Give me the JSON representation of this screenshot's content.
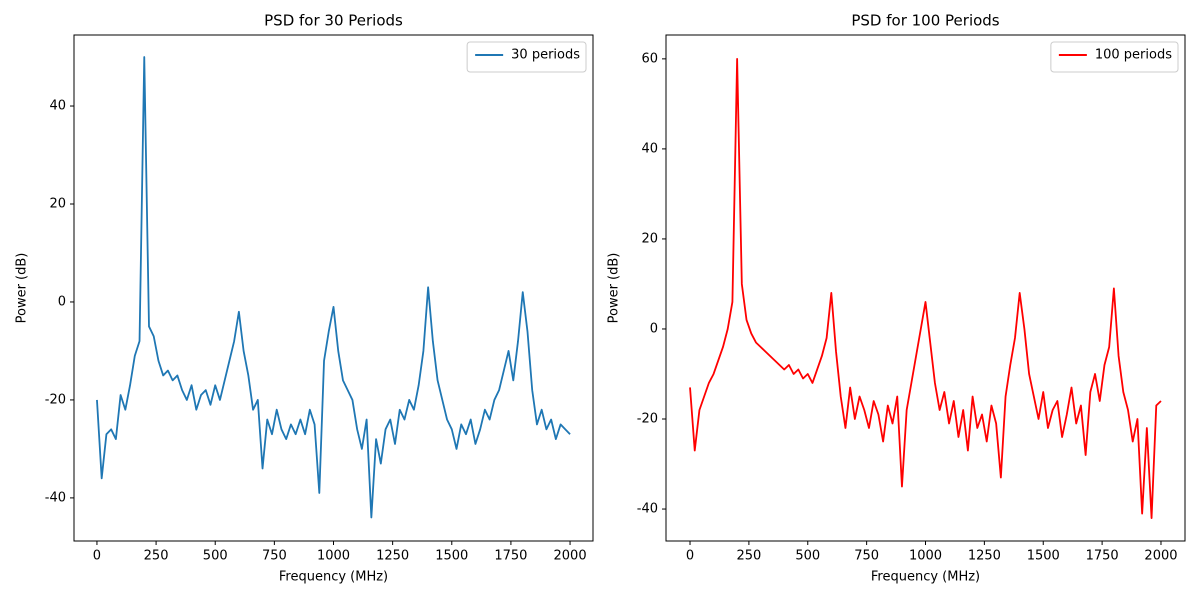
{
  "chart_data": [
    {
      "type": "line",
      "title": "PSD for 30 Periods",
      "x_label": "Frequency (MHz)",
      "y_label": "Power (dB)",
      "x": [
        0,
        20,
        40,
        60,
        80,
        100,
        120,
        140,
        160,
        180,
        200,
        220,
        240,
        260,
        280,
        300,
        320,
        340,
        360,
        380,
        400,
        420,
        440,
        460,
        480,
        500,
        520,
        540,
        560,
        580,
        600,
        620,
        640,
        660,
        680,
        700,
        720,
        740,
        760,
        780,
        800,
        820,
        840,
        860,
        880,
        900,
        920,
        940,
        960,
        980,
        1000,
        1020,
        1040,
        1060,
        1080,
        1100,
        1120,
        1140,
        1160,
        1180,
        1200,
        1220,
        1240,
        1260,
        1280,
        1300,
        1320,
        1340,
        1360,
        1380,
        1400,
        1420,
        1440,
        1460,
        1480,
        1500,
        1520,
        1540,
        1560,
        1580,
        1600,
        1620,
        1640,
        1660,
        1680,
        1700,
        1720,
        1740,
        1760,
        1780,
        1800,
        1820,
        1840,
        1860,
        1880,
        1900,
        1920,
        1940,
        1960,
        1980,
        2000
      ],
      "series": [
        {
          "name": "30 periods",
          "color": "#1f77b4",
          "values": [
            -20,
            -36,
            -27,
            -26,
            -28,
            -19,
            -22,
            -17,
            -11,
            -8,
            50,
            -5,
            -7,
            -12,
            -15,
            -14,
            -16,
            -15,
            -18,
            -20,
            -17,
            -22,
            -19,
            -18,
            -21,
            -17,
            -20,
            -16,
            -12,
            -8,
            -2,
            -10,
            -15,
            -22,
            -20,
            -34,
            -24,
            -27,
            -22,
            -26,
            -28,
            -25,
            -27,
            -24,
            -27,
            -22,
            -25,
            -39,
            -12,
            -6,
            -1,
            -10,
            -16,
            -18,
            -20,
            -26,
            -30,
            -24,
            -44,
            -28,
            -33,
            -26,
            -24,
            -29,
            -22,
            -24,
            -20,
            -22,
            -17,
            -10,
            3,
            -8,
            -16,
            -20,
            -24,
            -26,
            -30,
            -25,
            -27,
            -24,
            -29,
            -26,
            -22,
            -24,
            -20,
            -18,
            -14,
            -10,
            -16,
            -8,
            2,
            -6,
            -18,
            -25,
            -22,
            -26,
            -24,
            -28,
            -25,
            -26,
            -27
          ]
        }
      ],
      "xlim": [
        -97,
        2097
      ],
      "ylim": [
        -48.8,
        54.5
      ],
      "xticks": [
        0,
        250,
        500,
        750,
        1000,
        1250,
        1500,
        1750,
        2000
      ],
      "yticks": [
        -40,
        -20,
        0,
        20,
        40
      ],
      "legend": "upper right"
    },
    {
      "type": "line",
      "title": "PSD for 100 Periods",
      "x_label": "Frequency (MHz)",
      "y_label": "Power (dB)",
      "x": [
        0,
        20,
        40,
        60,
        80,
        100,
        120,
        140,
        160,
        180,
        200,
        220,
        240,
        260,
        280,
        300,
        320,
        340,
        360,
        380,
        400,
        420,
        440,
        460,
        480,
        500,
        520,
        540,
        560,
        580,
        600,
        620,
        640,
        660,
        680,
        700,
        720,
        740,
        760,
        780,
        800,
        820,
        840,
        860,
        880,
        900,
        920,
        940,
        960,
        980,
        1000,
        1020,
        1040,
        1060,
        1080,
        1100,
        1120,
        1140,
        1160,
        1180,
        1200,
        1220,
        1240,
        1260,
        1280,
        1300,
        1320,
        1340,
        1360,
        1380,
        1400,
        1420,
        1440,
        1460,
        1480,
        1500,
        1520,
        1540,
        1560,
        1580,
        1600,
        1620,
        1640,
        1660,
        1680,
        1700,
        1720,
        1740,
        1760,
        1780,
        1800,
        1820,
        1840,
        1860,
        1880,
        1900,
        1920,
        1940,
        1960,
        1980,
        2000
      ],
      "series": [
        {
          "name": "100 periods",
          "color": "#ff0000",
          "values": [
            -13,
            -27,
            -18,
            -15,
            -12,
            -10,
            -7,
            -4,
            0,
            6,
            60,
            10,
            2,
            -1,
            -3,
            -4,
            -5,
            -6,
            -7,
            -8,
            -9,
            -8,
            -10,
            -9,
            -11,
            -10,
            -12,
            -9,
            -6,
            -2,
            8,
            -5,
            -15,
            -22,
            -13,
            -20,
            -15,
            -18,
            -22,
            -16,
            -19,
            -25,
            -17,
            -21,
            -15,
            -35,
            -18,
            -12,
            -6,
            0,
            6,
            -3,
            -12,
            -18,
            -14,
            -21,
            -16,
            -24,
            -18,
            -27,
            -15,
            -22,
            -19,
            -25,
            -17,
            -21,
            -33,
            -15,
            -8,
            -2,
            8,
            0,
            -10,
            -15,
            -20,
            -14,
            -22,
            -18,
            -16,
            -24,
            -19,
            -13,
            -21,
            -17,
            -28,
            -14,
            -10,
            -16,
            -8,
            -4,
            9,
            -6,
            -14,
            -18,
            -25,
            -20,
            -41,
            -22,
            -42,
            -17,
            -16
          ]
        }
      ],
      "xlim": [
        -102,
        2102
      ],
      "ylim": [
        -47.1,
        65.3
      ],
      "xticks": [
        0,
        250,
        500,
        750,
        1000,
        1250,
        1500,
        1750,
        2000
      ],
      "yticks": [
        -40,
        -20,
        0,
        20,
        40,
        60
      ],
      "legend": "upper right"
    }
  ]
}
